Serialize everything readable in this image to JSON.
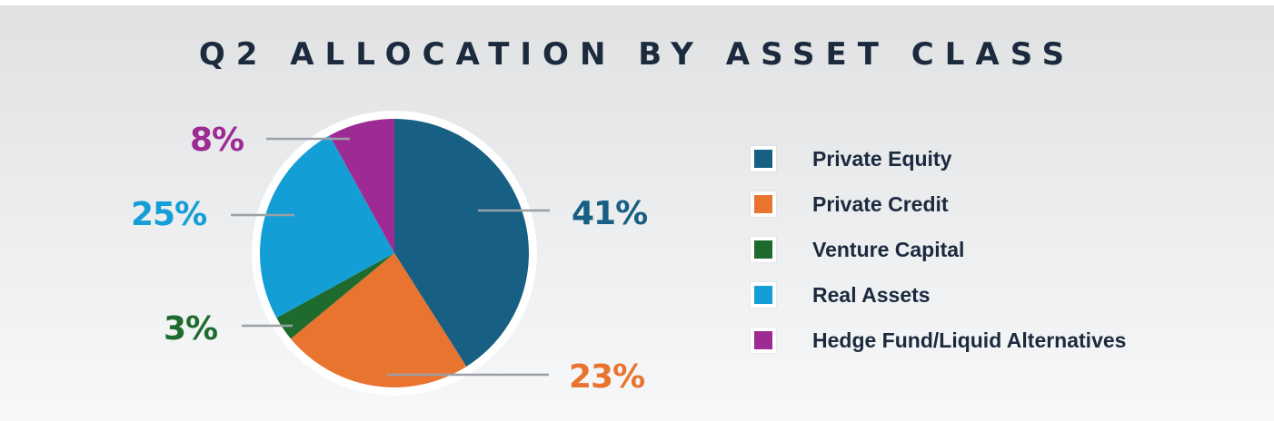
{
  "chart_data": {
    "type": "pie",
    "title": "Q2 ALLOCATION BY ASSET CLASS",
    "categories": [
      "Private Equity",
      "Private Credit",
      "Venture Capital",
      "Real Assets",
      "Hedge Fund/Liquid Alternatives"
    ],
    "values": [
      41,
      23,
      3,
      25,
      8
    ],
    "labels": [
      "41%",
      "23%",
      "3%",
      "25%",
      "8%"
    ],
    "colors": [
      "#175f83",
      "#e97430",
      "#1f6b2e",
      "#139fd6",
      "#9e2b93"
    ],
    "legend_placement": "right"
  }
}
